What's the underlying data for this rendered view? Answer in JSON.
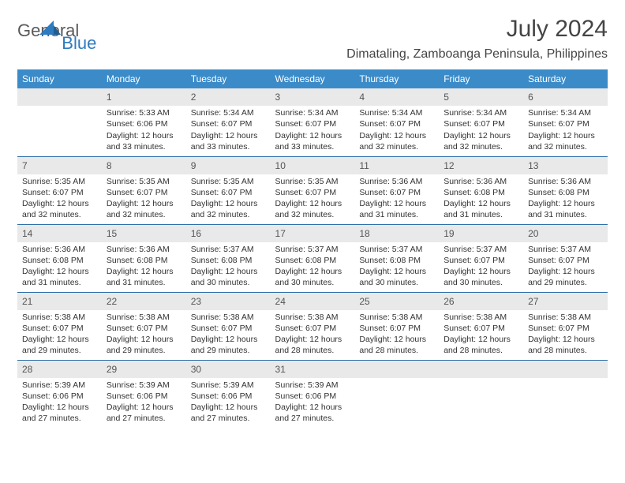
{
  "logo": {
    "general": "General",
    "blue": "Blue"
  },
  "title": "July 2024",
  "location": "Dimataling, Zamboanga Peninsula, Philippines",
  "weekdays": [
    "Sunday",
    "Monday",
    "Tuesday",
    "Wednesday",
    "Thursday",
    "Friday",
    "Saturday"
  ],
  "colors": {
    "header_bg": "#3b8bc9",
    "header_text": "#ffffff",
    "daynum_bg": "#e9e9e9",
    "row_border": "#2f6fa8",
    "body_text": "#333333",
    "logo_gray": "#5a5a5a",
    "logo_blue": "#2f7bbf"
  },
  "weeks": [
    [
      {
        "n": "",
        "sr": "",
        "ss": "",
        "dl": ""
      },
      {
        "n": "1",
        "sr": "Sunrise: 5:33 AM",
        "ss": "Sunset: 6:06 PM",
        "dl": "Daylight: 12 hours and 33 minutes."
      },
      {
        "n": "2",
        "sr": "Sunrise: 5:34 AM",
        "ss": "Sunset: 6:07 PM",
        "dl": "Daylight: 12 hours and 33 minutes."
      },
      {
        "n": "3",
        "sr": "Sunrise: 5:34 AM",
        "ss": "Sunset: 6:07 PM",
        "dl": "Daylight: 12 hours and 33 minutes."
      },
      {
        "n": "4",
        "sr": "Sunrise: 5:34 AM",
        "ss": "Sunset: 6:07 PM",
        "dl": "Daylight: 12 hours and 32 minutes."
      },
      {
        "n": "5",
        "sr": "Sunrise: 5:34 AM",
        "ss": "Sunset: 6:07 PM",
        "dl": "Daylight: 12 hours and 32 minutes."
      },
      {
        "n": "6",
        "sr": "Sunrise: 5:34 AM",
        "ss": "Sunset: 6:07 PM",
        "dl": "Daylight: 12 hours and 32 minutes."
      }
    ],
    [
      {
        "n": "7",
        "sr": "Sunrise: 5:35 AM",
        "ss": "Sunset: 6:07 PM",
        "dl": "Daylight: 12 hours and 32 minutes."
      },
      {
        "n": "8",
        "sr": "Sunrise: 5:35 AM",
        "ss": "Sunset: 6:07 PM",
        "dl": "Daylight: 12 hours and 32 minutes."
      },
      {
        "n": "9",
        "sr": "Sunrise: 5:35 AM",
        "ss": "Sunset: 6:07 PM",
        "dl": "Daylight: 12 hours and 32 minutes."
      },
      {
        "n": "10",
        "sr": "Sunrise: 5:35 AM",
        "ss": "Sunset: 6:07 PM",
        "dl": "Daylight: 12 hours and 32 minutes."
      },
      {
        "n": "11",
        "sr": "Sunrise: 5:36 AM",
        "ss": "Sunset: 6:07 PM",
        "dl": "Daylight: 12 hours and 31 minutes."
      },
      {
        "n": "12",
        "sr": "Sunrise: 5:36 AM",
        "ss": "Sunset: 6:08 PM",
        "dl": "Daylight: 12 hours and 31 minutes."
      },
      {
        "n": "13",
        "sr": "Sunrise: 5:36 AM",
        "ss": "Sunset: 6:08 PM",
        "dl": "Daylight: 12 hours and 31 minutes."
      }
    ],
    [
      {
        "n": "14",
        "sr": "Sunrise: 5:36 AM",
        "ss": "Sunset: 6:08 PM",
        "dl": "Daylight: 12 hours and 31 minutes."
      },
      {
        "n": "15",
        "sr": "Sunrise: 5:36 AM",
        "ss": "Sunset: 6:08 PM",
        "dl": "Daylight: 12 hours and 31 minutes."
      },
      {
        "n": "16",
        "sr": "Sunrise: 5:37 AM",
        "ss": "Sunset: 6:08 PM",
        "dl": "Daylight: 12 hours and 30 minutes."
      },
      {
        "n": "17",
        "sr": "Sunrise: 5:37 AM",
        "ss": "Sunset: 6:08 PM",
        "dl": "Daylight: 12 hours and 30 minutes."
      },
      {
        "n": "18",
        "sr": "Sunrise: 5:37 AM",
        "ss": "Sunset: 6:08 PM",
        "dl": "Daylight: 12 hours and 30 minutes."
      },
      {
        "n": "19",
        "sr": "Sunrise: 5:37 AM",
        "ss": "Sunset: 6:07 PM",
        "dl": "Daylight: 12 hours and 30 minutes."
      },
      {
        "n": "20",
        "sr": "Sunrise: 5:37 AM",
        "ss": "Sunset: 6:07 PM",
        "dl": "Daylight: 12 hours and 29 minutes."
      }
    ],
    [
      {
        "n": "21",
        "sr": "Sunrise: 5:38 AM",
        "ss": "Sunset: 6:07 PM",
        "dl": "Daylight: 12 hours and 29 minutes."
      },
      {
        "n": "22",
        "sr": "Sunrise: 5:38 AM",
        "ss": "Sunset: 6:07 PM",
        "dl": "Daylight: 12 hours and 29 minutes."
      },
      {
        "n": "23",
        "sr": "Sunrise: 5:38 AM",
        "ss": "Sunset: 6:07 PM",
        "dl": "Daylight: 12 hours and 29 minutes."
      },
      {
        "n": "24",
        "sr": "Sunrise: 5:38 AM",
        "ss": "Sunset: 6:07 PM",
        "dl": "Daylight: 12 hours and 28 minutes."
      },
      {
        "n": "25",
        "sr": "Sunrise: 5:38 AM",
        "ss": "Sunset: 6:07 PM",
        "dl": "Daylight: 12 hours and 28 minutes."
      },
      {
        "n": "26",
        "sr": "Sunrise: 5:38 AM",
        "ss": "Sunset: 6:07 PM",
        "dl": "Daylight: 12 hours and 28 minutes."
      },
      {
        "n": "27",
        "sr": "Sunrise: 5:38 AM",
        "ss": "Sunset: 6:07 PM",
        "dl": "Daylight: 12 hours and 28 minutes."
      }
    ],
    [
      {
        "n": "28",
        "sr": "Sunrise: 5:39 AM",
        "ss": "Sunset: 6:06 PM",
        "dl": "Daylight: 12 hours and 27 minutes."
      },
      {
        "n": "29",
        "sr": "Sunrise: 5:39 AM",
        "ss": "Sunset: 6:06 PM",
        "dl": "Daylight: 12 hours and 27 minutes."
      },
      {
        "n": "30",
        "sr": "Sunrise: 5:39 AM",
        "ss": "Sunset: 6:06 PM",
        "dl": "Daylight: 12 hours and 27 minutes."
      },
      {
        "n": "31",
        "sr": "Sunrise: 5:39 AM",
        "ss": "Sunset: 6:06 PM",
        "dl": "Daylight: 12 hours and 27 minutes."
      },
      {
        "n": "",
        "sr": "",
        "ss": "",
        "dl": ""
      },
      {
        "n": "",
        "sr": "",
        "ss": "",
        "dl": ""
      },
      {
        "n": "",
        "sr": "",
        "ss": "",
        "dl": ""
      }
    ]
  ]
}
